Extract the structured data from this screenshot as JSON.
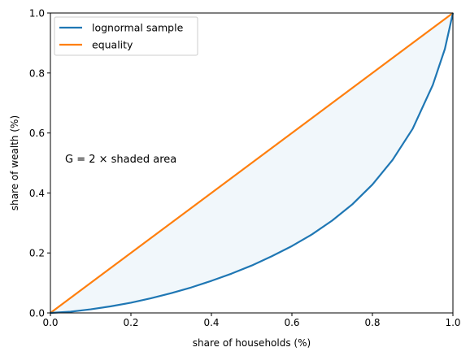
{
  "chart_data": {
    "type": "line",
    "title": "",
    "xlabel": "share of households (%)",
    "ylabel": "share of wealth (%)",
    "xlim": [
      0,
      1
    ],
    "ylim": [
      0,
      1
    ],
    "xticks": [
      "0.0",
      "0.2",
      "0.4",
      "0.6",
      "0.8",
      "1.0"
    ],
    "yticks": [
      "0.0",
      "0.2",
      "0.4",
      "0.6",
      "0.8",
      "1.0"
    ],
    "grid": false,
    "legend_position": "upper-left",
    "annotation": "G = 2 × shaded area",
    "shaded_region": {
      "between": [
        "equality",
        "lognormal sample"
      ],
      "color": "#e8f1f8"
    },
    "series": [
      {
        "name": "lognormal sample",
        "color": "#1f77b4",
        "x": [
          0.0,
          0.05,
          0.1,
          0.15,
          0.2,
          0.25,
          0.3,
          0.35,
          0.4,
          0.45,
          0.5,
          0.55,
          0.6,
          0.65,
          0.7,
          0.75,
          0.8,
          0.85,
          0.9,
          0.95,
          0.98,
          1.0
        ],
        "y": [
          0.0,
          0.004,
          0.012,
          0.022,
          0.034,
          0.049,
          0.066,
          0.085,
          0.107,
          0.131,
          0.158,
          0.189,
          0.223,
          0.262,
          0.308,
          0.362,
          0.428,
          0.51,
          0.614,
          0.76,
          0.88,
          1.0
        ]
      },
      {
        "name": "equality",
        "color": "#ff7f0e",
        "x": [
          0.0,
          1.0
        ],
        "y": [
          0.0,
          1.0
        ]
      }
    ]
  }
}
